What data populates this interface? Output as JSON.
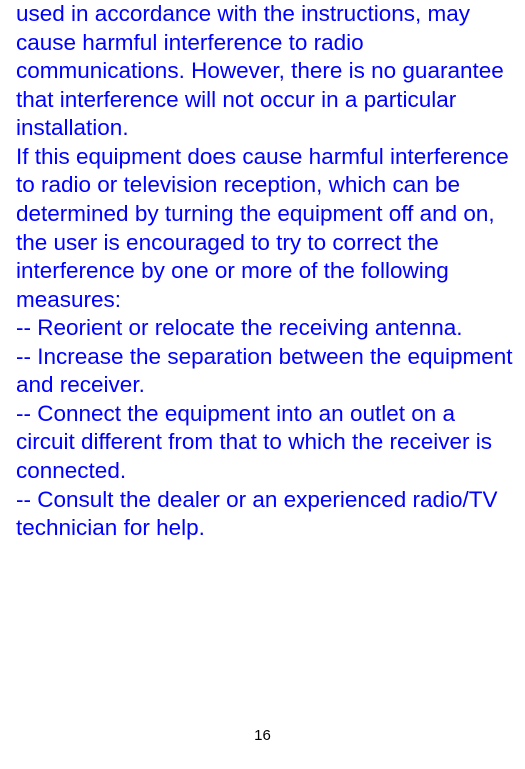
{
  "text_color": "#0000ff",
  "background_color": "#ffffff",
  "page_number_color": "#000000",
  "font_size_body": 22.5,
  "font_size_page_number": 15,
  "page_number": "16",
  "paragraphs": {
    "p1": "used in accordance with the instructions, may cause harmful interference to radio communications. However, there is no guarantee that interference will not occur in a particular installation.",
    "p2": "If this equipment does cause harmful interference to radio or television reception, which can be determined by turning the equipment off and on, the user is encouraged to try to correct the interference by one or more of the following measures:",
    "b1": "-- Reorient or relocate the receiving antenna.",
    "b2": "-- Increase the separation between the equipment and receiver.",
    "b3": "-- Connect the equipment into an outlet on a circuit different from that to which the receiver is connected.",
    "b4": "-- Consult the dealer or an experienced radio/TV technician for help."
  }
}
